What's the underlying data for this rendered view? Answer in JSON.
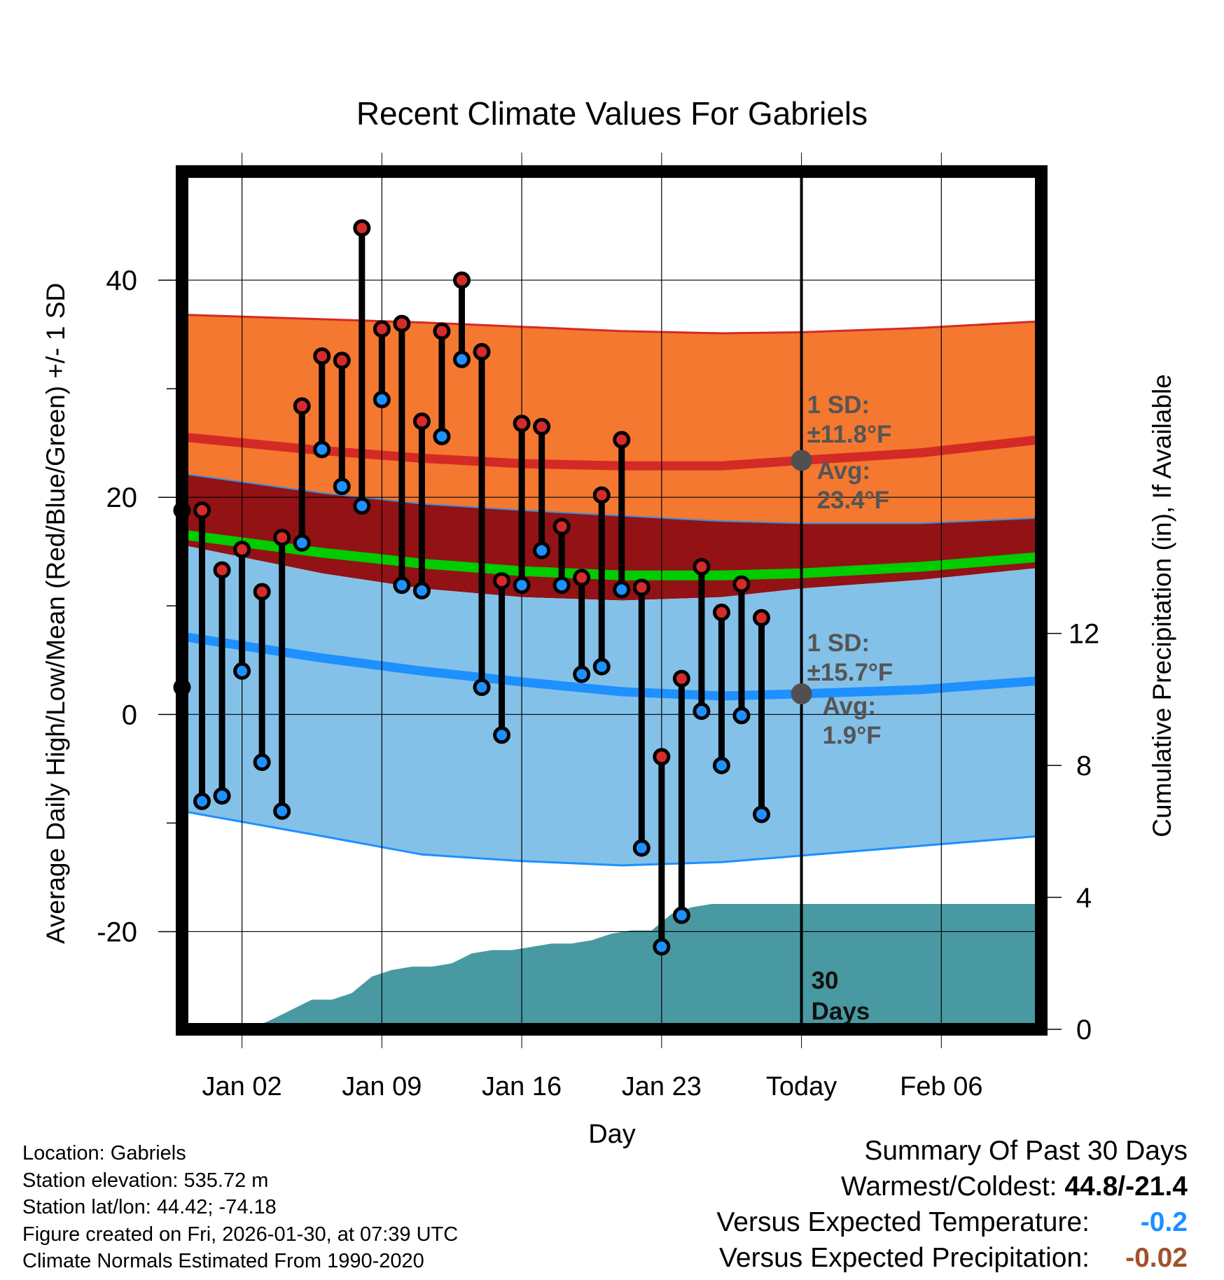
{
  "chart_data": {
    "type": "line",
    "title": "Recent Climate Values For Gabriels",
    "xlabel": "Day",
    "ylabel_left": "Average Daily High/Low/Mean (Red/Blue/Green) +/- 1 SD",
    "ylabel_right": "Cumulative Precipitation (in), If Available",
    "x_range_days": [
      -2,
      41
    ],
    "x_ticks": [
      {
        "day": 1,
        "label": "Jan 02"
      },
      {
        "day": 8,
        "label": "Jan 09"
      },
      {
        "day": 15,
        "label": "Jan 16"
      },
      {
        "day": 22,
        "label": "Jan 23"
      },
      {
        "day": 29,
        "label": "Today"
      },
      {
        "day": 36,
        "label": "Feb 06"
      }
    ],
    "y_left_range": [
      -29,
      50
    ],
    "y_left_ticks": [
      -20,
      0,
      20,
      40
    ],
    "y_right_range": [
      0,
      26
    ],
    "y_right_ticks": [
      0,
      4,
      8,
      12
    ],
    "normals": {
      "days": [
        -1.7,
        5,
        10,
        15,
        20,
        25,
        29,
        35,
        40.9
      ],
      "high_avg": [
        25.5,
        24.3,
        23.6,
        23.1,
        22.9,
        22.9,
        23.4,
        24.1,
        25.3
      ],
      "high_sd_upper": [
        36.8,
        36.4,
        36.1,
        35.7,
        35.3,
        35.1,
        35.2,
        35.6,
        36.2
      ],
      "high_sd_lower": [
        22.1,
        20.4,
        19.4,
        18.8,
        18.3,
        17.8,
        17.6,
        17.6,
        18.1
      ],
      "mean_avg": [
        16.5,
        14.9,
        13.9,
        13.2,
        12.8,
        12.8,
        13.0,
        13.6,
        14.5
      ],
      "low_avg": [
        7.1,
        5.2,
        4.0,
        3.0,
        2.1,
        1.7,
        1.9,
        2.3,
        3.1
      ],
      "low_sd_upper": [
        15.5,
        13.0,
        11.6,
        10.8,
        10.5,
        10.8,
        11.6,
        12.4,
        13.5
      ],
      "low_sd_lower": [
        -9.0,
        -11.2,
        -12.9,
        -13.5,
        -13.9,
        -13.6,
        -13.0,
        -12.1,
        -11.2
      ]
    },
    "daily": [
      {
        "day": -2,
        "high": 18.8,
        "low": 2.5
      },
      {
        "day": -1,
        "high": 18.8,
        "low": -8.0
      },
      {
        "day": 0,
        "high": 13.3,
        "low": -7.5
      },
      {
        "day": 1,
        "high": 15.2,
        "low": 4.0
      },
      {
        "day": 2,
        "high": 11.3,
        "low": -4.4
      },
      {
        "day": 3,
        "high": 16.3,
        "low": -8.9
      },
      {
        "day": 4,
        "high": 28.4,
        "low": 15.8
      },
      {
        "day": 5,
        "high": 33.0,
        "low": 24.4
      },
      {
        "day": 6,
        "high": 32.6,
        "low": 21.0
      },
      {
        "day": 7,
        "high": 44.8,
        "low": 19.2
      },
      {
        "day": 8,
        "high": 35.5,
        "low": 29.0
      },
      {
        "day": 9,
        "high": 36.0,
        "low": 11.9
      },
      {
        "day": 10,
        "high": 27.0,
        "low": 11.4
      },
      {
        "day": 11,
        "high": 35.3,
        "low": 25.6
      },
      {
        "day": 12,
        "high": 40.0,
        "low": 32.7
      },
      {
        "day": 13,
        "high": 33.4,
        "low": 2.5
      },
      {
        "day": 14,
        "high": 12.3,
        "low": -1.9
      },
      {
        "day": 15,
        "high": 26.8,
        "low": 11.9
      },
      {
        "day": 16,
        "high": 26.5,
        "low": 15.1
      },
      {
        "day": 17,
        "high": 17.3,
        "low": 11.9
      },
      {
        "day": 18,
        "high": 12.6,
        "low": 3.7
      },
      {
        "day": 19,
        "high": 20.2,
        "low": 4.4
      },
      {
        "day": 20,
        "high": 25.3,
        "low": 11.5
      },
      {
        "day": 21,
        "high": 11.7,
        "low": -12.3
      },
      {
        "day": 22,
        "high": -3.9,
        "low": -21.4
      },
      {
        "day": 23,
        "high": 3.3,
        "low": -18.5
      },
      {
        "day": 24,
        "high": 13.6,
        "low": 0.3
      },
      {
        "day": 25,
        "high": 9.4,
        "low": -4.7
      },
      {
        "day": 26,
        "high": 12.0,
        "low": -0.1
      },
      {
        "day": 27,
        "high": 8.9,
        "low": -9.2
      }
    ],
    "cumulative_precip_in": {
      "days": [
        1.4,
        2.5,
        3.5,
        4.5,
        5.5,
        6.5,
        7.5,
        8.5,
        9.5,
        10.5,
        11.5,
        12.5,
        13.5,
        14.5,
        15.5,
        16.5,
        17.5,
        18.5,
        19.5,
        20.5,
        21.5,
        22.5,
        23.5,
        24.5,
        25.5,
        26.5,
        27.5,
        28.5,
        29,
        40.9
      ],
      "values": [
        0.0,
        0.3,
        0.6,
        0.9,
        0.9,
        1.1,
        1.6,
        1.8,
        1.9,
        1.9,
        2.0,
        2.3,
        2.4,
        2.4,
        2.5,
        2.6,
        2.6,
        2.7,
        2.9,
        3.0,
        3.0,
        3.5,
        3.7,
        3.8,
        3.8,
        3.8,
        3.8,
        3.8,
        3.8,
        3.8
      ]
    },
    "annotations": {
      "today_day": 29,
      "high_sd_label": "1 SD:",
      "high_sd_value": "±11.8°F",
      "high_avg_label": "Avg:",
      "high_avg_value": "23.4°F",
      "low_sd_label": "1 SD:",
      "low_sd_value": "±15.7°F",
      "low_avg_label": "Avg:",
      "low_avg_value": "1.9°F",
      "days_number": "30",
      "days_word": "Days"
    },
    "colors": {
      "high_band": "#f4782f",
      "high_line": "#d42a25",
      "mean_band": "#931215",
      "mean_line": "#00cc00",
      "low_band": "#84c1e8",
      "low_line": "#1e90ff",
      "precip": "#4999a2",
      "marker_high": "#d62b2b",
      "marker_low": "#1e90ff",
      "annotation_text": "#555555"
    }
  },
  "info": {
    "location": "Location: Gabriels",
    "elevation": "Station elevation: 535.72 m",
    "latlon": "Station lat/lon: 44.42; -74.18",
    "created": "Figure created on Fri, 2026-01-30, at 07:39 UTC",
    "normals": "Climate Normals Estimated From 1990-2020"
  },
  "summary": {
    "title": "Summary Of Past 30 Days",
    "warmest_coldest_label": "Warmest/Coldest:",
    "warmest_coldest_value": "44.8/-21.4",
    "temp_label": "Versus Expected Temperature:",
    "temp_value": "-0.2",
    "precip_label": "Versus Expected Precipitation:",
    "precip_value": "-0.02"
  }
}
